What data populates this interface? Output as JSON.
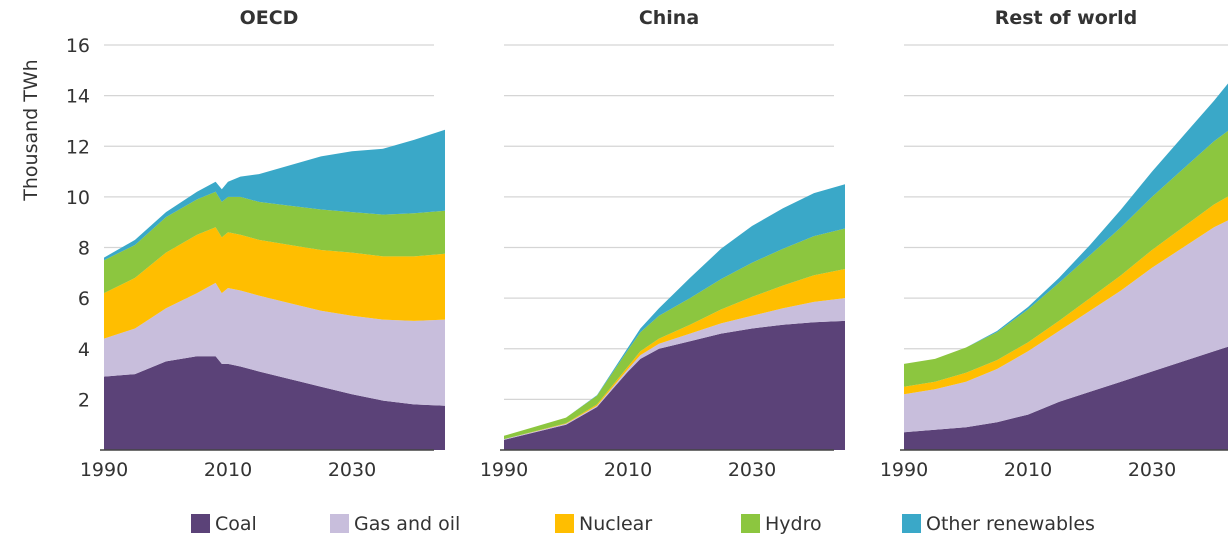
{
  "chart_data": {
    "type": "area",
    "ylabel": "Thousand TWh",
    "ylim": [
      0,
      16
    ],
    "yticks": [
      2,
      4,
      6,
      8,
      10,
      12,
      14,
      16
    ],
    "xlim": [
      1990,
      2045
    ],
    "xticks": [
      1990,
      2010,
      2030
    ],
    "grid": true,
    "stacked": true,
    "legend_position": "bottom",
    "colors": {
      "Coal": "#5b4278",
      "Gas and oil": "#c8bedc",
      "Nuclear": "#ffbe00",
      "Hydro": "#8cc63f",
      "Other renewables": "#3aa8c8"
    },
    "series_names": [
      "Coal",
      "Gas and oil",
      "Nuclear",
      "Hydro",
      "Other renewables"
    ],
    "panels": [
      {
        "title": "OECD",
        "x": [
          1990,
          1995,
          2000,
          2005,
          2008,
          2009,
          2010,
          2012,
          2015,
          2020,
          2025,
          2030,
          2035,
          2040,
          2045
        ],
        "series": [
          {
            "name": "Coal",
            "values": [
              2.9,
              3.0,
              3.5,
              3.7,
              3.7,
              3.4,
              3.4,
              3.3,
              3.1,
              2.8,
              2.5,
              2.2,
              1.95,
              1.8,
              1.75
            ]
          },
          {
            "name": "Gas and oil",
            "values": [
              1.5,
              1.8,
              2.1,
              2.5,
              2.9,
              2.8,
              3.0,
              3.0,
              3.0,
              3.0,
              3.0,
              3.1,
              3.2,
              3.3,
              3.4
            ]
          },
          {
            "name": "Nuclear",
            "values": [
              1.8,
              2.0,
              2.2,
              2.3,
              2.2,
              2.2,
              2.2,
              2.2,
              2.2,
              2.3,
              2.4,
              2.5,
              2.5,
              2.55,
              2.6
            ]
          },
          {
            "name": "Hydro",
            "values": [
              1.3,
              1.3,
              1.4,
              1.4,
              1.4,
              1.4,
              1.4,
              1.5,
              1.5,
              1.55,
              1.6,
              1.6,
              1.65,
              1.7,
              1.7
            ]
          },
          {
            "name": "Other renewables",
            "values": [
              0.1,
              0.2,
              0.2,
              0.3,
              0.4,
              0.5,
              0.6,
              0.8,
              1.1,
              1.6,
              2.1,
              2.4,
              2.6,
              2.9,
              3.2
            ]
          }
        ]
      },
      {
        "title": "China",
        "x": [
          1990,
          1995,
          2000,
          2005,
          2010,
          2012,
          2015,
          2020,
          2025,
          2030,
          2035,
          2040,
          2045
        ],
        "series": [
          {
            "name": "Coal",
            "values": [
              0.4,
              0.7,
              1.0,
              1.7,
              3.1,
              3.6,
              4.0,
              4.3,
              4.6,
              4.8,
              4.95,
              5.05,
              5.1
            ]
          },
          {
            "name": "Gas and oil",
            "values": [
              0.03,
              0.03,
              0.04,
              0.05,
              0.1,
              0.15,
              0.2,
              0.3,
              0.4,
              0.5,
              0.65,
              0.8,
              0.9
            ]
          },
          {
            "name": "Nuclear",
            "values": [
              0.0,
              0.01,
              0.02,
              0.05,
              0.1,
              0.15,
              0.2,
              0.35,
              0.55,
              0.75,
              0.9,
              1.05,
              1.15
            ]
          },
          {
            "name": "Hydro",
            "values": [
              0.13,
              0.18,
              0.22,
              0.35,
              0.65,
              0.75,
              0.9,
              1.05,
              1.2,
              1.35,
              1.45,
              1.55,
              1.6
            ]
          },
          {
            "name": "Other renewables",
            "values": [
              0.0,
              0.0,
              0.0,
              0.02,
              0.1,
              0.15,
              0.3,
              0.8,
              1.2,
              1.45,
              1.6,
              1.7,
              1.75
            ]
          }
        ]
      },
      {
        "title": "Rest of world",
        "x": [
          1990,
          1995,
          2000,
          2005,
          2010,
          2015,
          2020,
          2025,
          2030,
          2035,
          2040,
          2045
        ],
        "series": [
          {
            "name": "Coal",
            "values": [
              0.7,
              0.8,
              0.9,
              1.1,
              1.4,
              1.9,
              2.3,
              2.7,
              3.1,
              3.5,
              3.9,
              4.3
            ]
          },
          {
            "name": "Gas and oil",
            "values": [
              1.5,
              1.6,
              1.8,
              2.1,
              2.5,
              2.8,
              3.2,
              3.6,
              4.1,
              4.5,
              4.9,
              5.1
            ]
          },
          {
            "name": "Nuclear",
            "values": [
              0.3,
              0.3,
              0.35,
              0.35,
              0.35,
              0.4,
              0.5,
              0.6,
              0.7,
              0.8,
              0.9,
              1.0
            ]
          },
          {
            "name": "Hydro",
            "values": [
              0.9,
              0.9,
              1.0,
              1.1,
              1.3,
              1.5,
              1.7,
              1.9,
              2.1,
              2.3,
              2.5,
              2.7
            ]
          },
          {
            "name": "Other renewables",
            "values": [
              0.0,
              0.0,
              0.0,
              0.05,
              0.1,
              0.2,
              0.4,
              0.7,
              1.0,
              1.3,
              1.6,
              2.2
            ]
          }
        ]
      }
    ]
  }
}
